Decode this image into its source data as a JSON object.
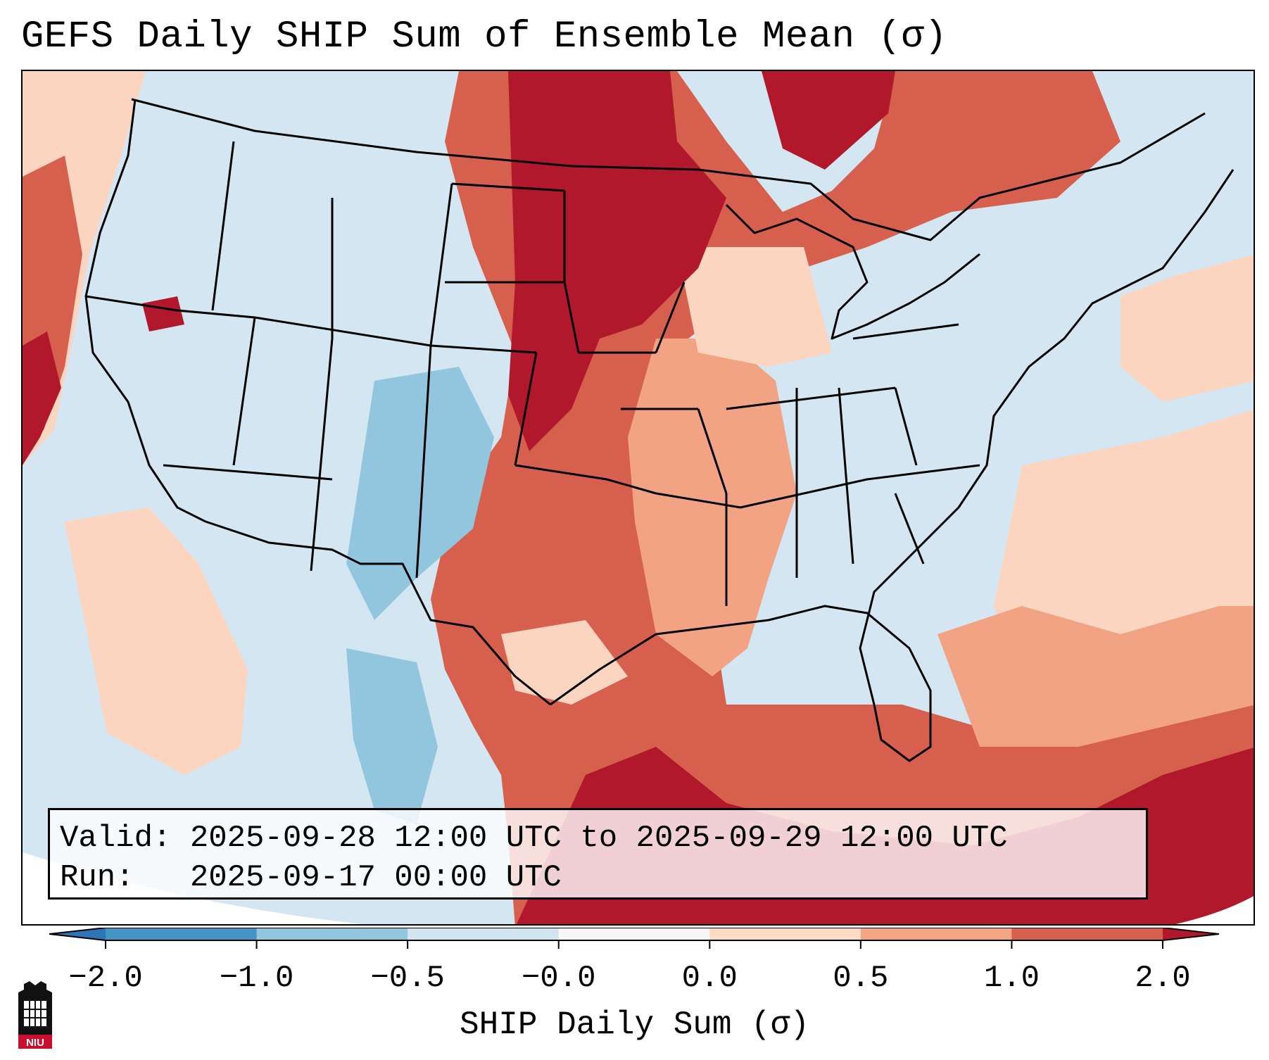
{
  "title": "GEFS Daily SHIP Sum of Ensemble Mean (σ)",
  "info": {
    "valid_label": "Valid:",
    "valid_value": "2025-09-28 12:00 UTC to 2025-09-29 12:00 UTC",
    "run_label": "Run:",
    "run_value": "2025-09-17 00:00 UTC"
  },
  "colorbar": {
    "label": "SHIP Daily Sum (σ)",
    "ticks": [
      "−2.0",
      "−1.0",
      "−0.5",
      "−0.0",
      "0.0",
      "0.5",
      "1.0",
      "2.0"
    ],
    "colors": [
      "#2e75b6",
      "#4393c3",
      "#92c5de",
      "#d1e5f0",
      "#f7f7f7",
      "#fddbc7",
      "#f4a582",
      "#d6604d",
      "#b2182b"
    ]
  },
  "logo": {
    "text": "NIU",
    "colors": {
      "crimson": "#c8102e",
      "black": "#111111"
    }
  },
  "map_colors": {
    "background": "#d4e6f1",
    "light_red": "#fcd5c1",
    "mid_red": "#f2a383",
    "red": "#d6604d",
    "dark_red": "#b2182b",
    "light_blue": "#92c5de",
    "mid_blue": "#6baed6"
  }
}
